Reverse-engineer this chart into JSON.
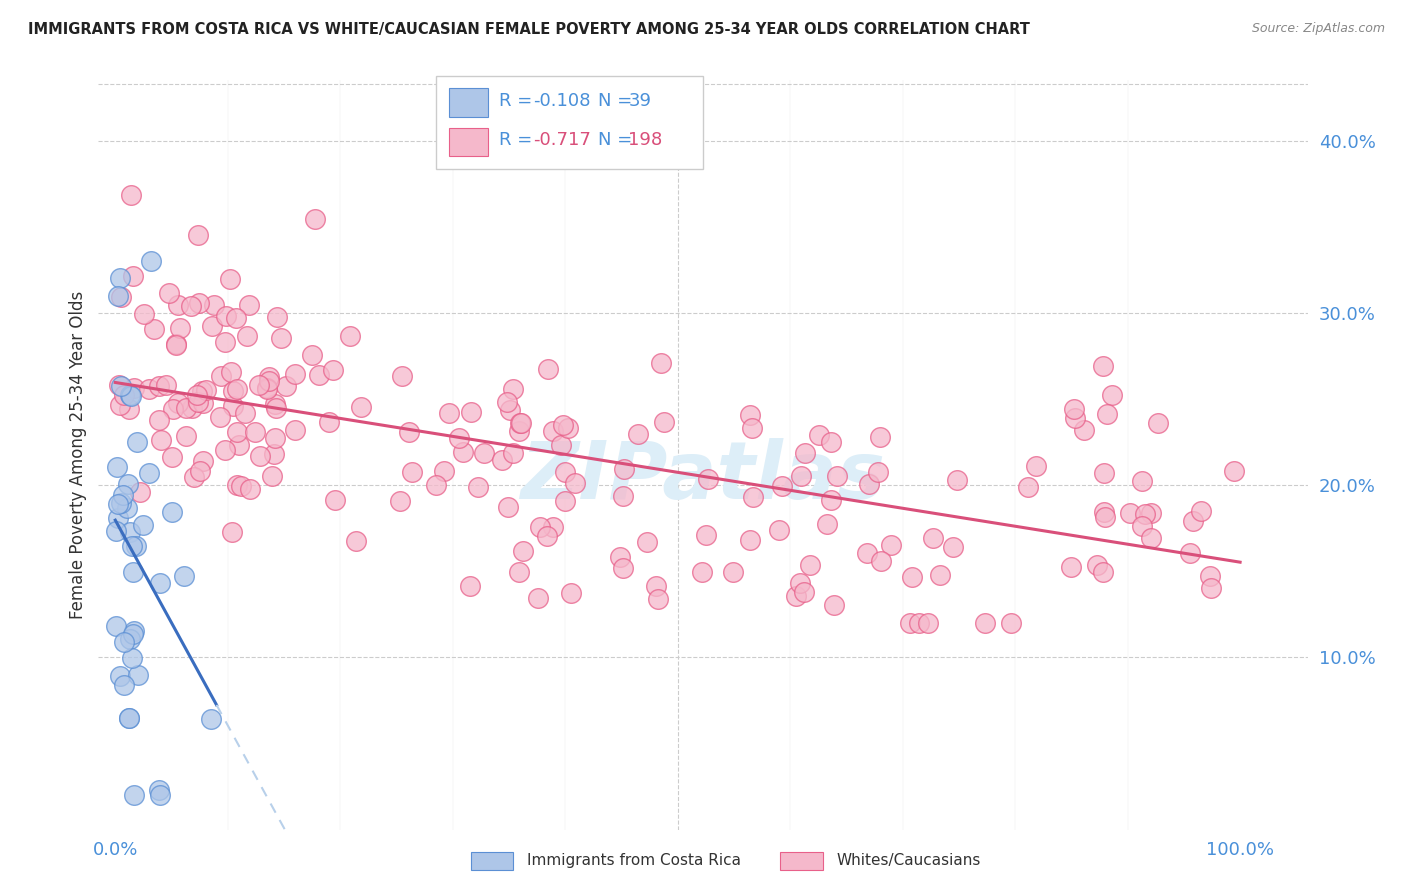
{
  "title": "IMMIGRANTS FROM COSTA RICA VS WHITE/CAUCASIAN FEMALE POVERTY AMONG 25-34 YEAR OLDS CORRELATION CHART",
  "source": "Source: ZipAtlas.com",
  "ylabel": "Female Poverty Among 25-34 Year Olds",
  "ytick_labels": [
    "10.0%",
    "20.0%",
    "30.0%",
    "40.0%"
  ],
  "ytick_values": [
    0.1,
    0.2,
    0.3,
    0.4
  ],
  "ymin": 0.0,
  "ymax": 0.435,
  "xmin": -0.015,
  "xmax": 1.06,
  "blue_R": -0.108,
  "blue_N": 39,
  "pink_R": -0.717,
  "pink_N": 198,
  "blue_color": "#aec6e8",
  "pink_color": "#f5b8cb",
  "blue_edge_color": "#5b8fd4",
  "pink_edge_color": "#e8608a",
  "blue_line_color": "#3a6dbf",
  "pink_line_color": "#d94f7a",
  "dashed_line_color": "#b8d0ea",
  "text_color": "#4a90d9",
  "label_color": "#333333",
  "watermark_color": "#ddeef8",
  "watermark": "ZIPatlas",
  "legend_label_blue": "Immigrants from Costa Rica",
  "legend_label_pink": "Whites/Caucasians",
  "blue_line_intercept": 0.175,
  "blue_line_slope": -0.8,
  "pink_line_intercept": 0.255,
  "pink_line_slope": -0.115
}
